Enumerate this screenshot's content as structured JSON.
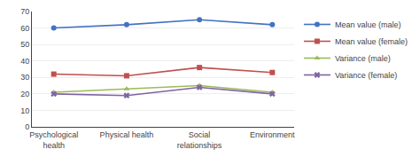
{
  "chart_data": {
    "type": "line",
    "categories": [
      "Psychological\nhealth",
      "Physical health",
      "Social\nrelationships",
      "Environment"
    ],
    "series": [
      {
        "name": "Mean value (male)",
        "color": "#4472C4",
        "marker": "circle",
        "line_style": "solid",
        "values": [
          60,
          62,
          65,
          62
        ]
      },
      {
        "name": "Mean value (female)",
        "color": "#C0504D",
        "marker": "square",
        "line_style": "solid",
        "values": [
          32,
          31,
          36,
          33
        ]
      },
      {
        "name": "Variance (male)",
        "color": "#9BBB59",
        "marker": "triangle-up",
        "line_style": "solid",
        "values": [
          21,
          23,
          25,
          21
        ]
      },
      {
        "name": "Variance (female)",
        "color": "#8064A2",
        "marker": "x",
        "line_style": "solid",
        "values": [
          20,
          19,
          24,
          20
        ]
      }
    ],
    "ylim": [
      0,
      70
    ],
    "yticks": [
      0,
      10,
      20,
      30,
      40,
      50,
      60,
      70
    ],
    "grid": true,
    "legend": "right"
  }
}
